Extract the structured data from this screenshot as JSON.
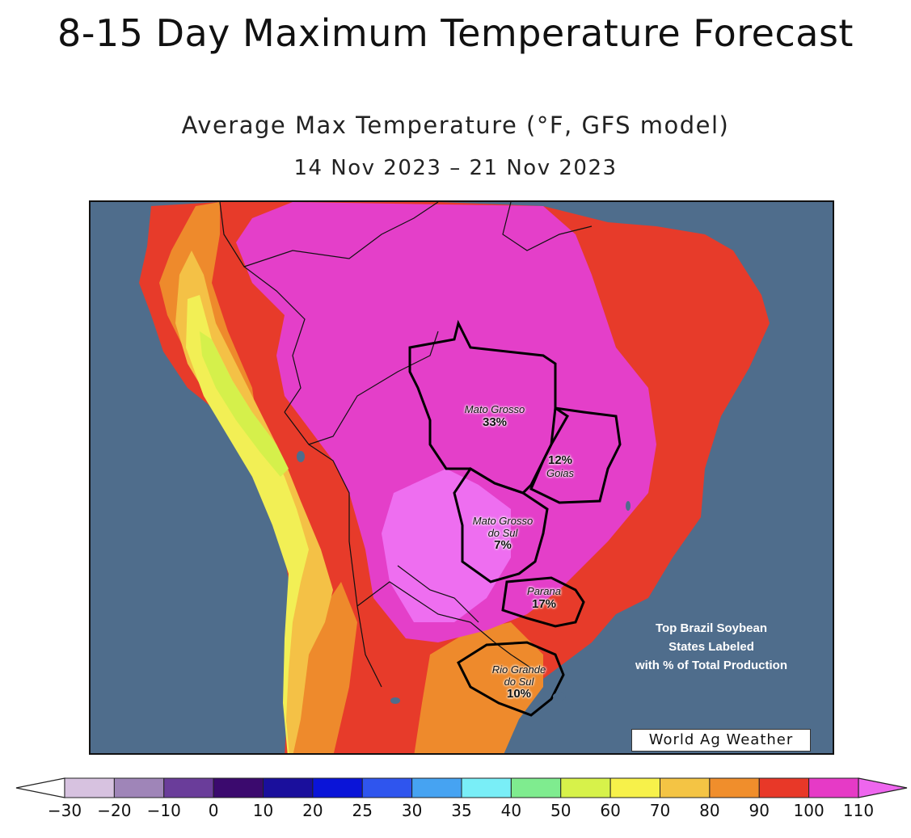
{
  "page_title": "8-15 Day Maximum Temperature Forecast",
  "map": {
    "title": "Average Max Temperature (°F, GFS model)",
    "date_range": "14 Nov 2023 – 21 Nov 2023",
    "model": "GFS",
    "units": "°F"
  },
  "states": [
    {
      "name": "Mato Grosso",
      "share": "33%"
    },
    {
      "name": "Goias",
      "share": "12%"
    },
    {
      "name": "Mato Grosso do Sul",
      "name_line1": "Mato Grosso",
      "name_line2": "do Sul",
      "share": "7%"
    },
    {
      "name": "Parana",
      "share": "17%"
    },
    {
      "name": "Rio Grande do Sul",
      "name_line1": "Rio Grande",
      "name_line2": "do Sul",
      "share": "10%"
    }
  ],
  "note": {
    "line1": "Top Brazil Soybean",
    "line2": "States Labeled",
    "line3": "with % of Total Production"
  },
  "watermark": "World Ag Weather",
  "legend": {
    "ticks": [
      "−30",
      "−20",
      "−10",
      "0",
      "10",
      "20",
      "25",
      "30",
      "35",
      "40",
      "50",
      "60",
      "70",
      "80",
      "90",
      "100",
      "110"
    ],
    "bins": [
      {
        "color": "#d7c2e0"
      },
      {
        "color": "#9f85b8"
      },
      {
        "color": "#6a3d9a"
      },
      {
        "color": "#3b0a6e"
      },
      {
        "color": "#1a0f9c"
      },
      {
        "color": "#0a14d8"
      },
      {
        "color": "#2f55ee"
      },
      {
        "color": "#46a3f2"
      },
      {
        "color": "#79eef7"
      },
      {
        "color": "#7fec8f"
      },
      {
        "color": "#d7f24a"
      },
      {
        "color": "#f7f14a"
      },
      {
        "color": "#f4c444"
      },
      {
        "color": "#f08e2c"
      },
      {
        "color": "#e83828"
      },
      {
        "color": "#e63ac6"
      }
    ],
    "under_color": "#ffffff",
    "over_color": "#ee66ee"
  },
  "colors": {
    "ocean": "#4f6d8c",
    "t110": "#ee6ef0",
    "t100": "#e43fc9",
    "t90": "#e73b2a",
    "t80": "#ee8a2c",
    "t70": "#f4c146",
    "t60": "#f2ef55",
    "t50": "#d5f04b"
  }
}
